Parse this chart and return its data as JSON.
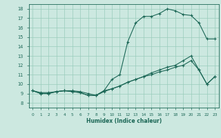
{
  "xlabel": "Humidex (Indice chaleur)",
  "background_color": "#cce8e0",
  "grid_color": "#99ccbb",
  "line_color": "#1a6655",
  "xlim": [
    -0.5,
    23.5
  ],
  "ylim": [
    7.5,
    18.5
  ],
  "xticks": [
    0,
    1,
    2,
    3,
    4,
    5,
    6,
    7,
    8,
    9,
    10,
    11,
    12,
    13,
    14,
    15,
    16,
    17,
    18,
    19,
    20,
    21,
    22,
    23
  ],
  "yticks": [
    8,
    9,
    10,
    11,
    12,
    13,
    14,
    15,
    16,
    17,
    18
  ],
  "line1_x": [
    0,
    1,
    2,
    3,
    4,
    5,
    6,
    7,
    8,
    9,
    10,
    11,
    12,
    13,
    14,
    15,
    16,
    17,
    18,
    19,
    20,
    21,
    22,
    23
  ],
  "line1_y": [
    9.3,
    9.0,
    9.0,
    9.2,
    9.3,
    9.2,
    9.1,
    8.8,
    8.8,
    9.3,
    10.5,
    11.0,
    14.5,
    16.5,
    17.2,
    17.2,
    17.5,
    18.0,
    17.8,
    17.4,
    17.3,
    16.5,
    14.8,
    14.8
  ],
  "line2_x": [
    0,
    1,
    2,
    3,
    4,
    5,
    6,
    7,
    8,
    9,
    10,
    11,
    12,
    13,
    14,
    15,
    16,
    17,
    18,
    19,
    20,
    21,
    22,
    23
  ],
  "line2_y": [
    9.3,
    9.0,
    9.0,
    9.2,
    9.3,
    9.2,
    9.1,
    8.8,
    8.8,
    9.3,
    9.5,
    9.8,
    10.2,
    10.5,
    10.8,
    11.2,
    11.5,
    11.8,
    12.0,
    12.5,
    13.0,
    11.5,
    10.0,
    10.8
  ],
  "line3_x": [
    0,
    1,
    2,
    3,
    4,
    5,
    6,
    7,
    8,
    9,
    10,
    11,
    12,
    13,
    14,
    15,
    16,
    17,
    18,
    19,
    20,
    21,
    22,
    23
  ],
  "line3_y": [
    9.3,
    9.1,
    9.1,
    9.2,
    9.3,
    9.3,
    9.2,
    9.0,
    8.8,
    9.2,
    9.5,
    9.8,
    10.2,
    10.5,
    10.8,
    11.0,
    11.3,
    11.5,
    11.8,
    12.0,
    12.5,
    11.5,
    10.0,
    10.8
  ]
}
